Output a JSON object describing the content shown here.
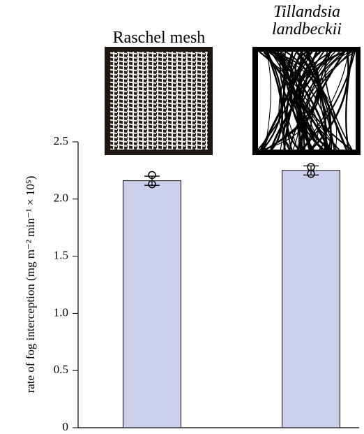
{
  "chart_data": {
    "type": "bar",
    "ylabel": "rate of fog interception (mg m⁻² min⁻¹ × 10⁵)",
    "categories": [
      "Raschel mesh",
      "Tillandsia landbeckii"
    ],
    "values": [
      2.16,
      2.25
    ],
    "errors": [
      0.04,
      0.04
    ],
    "points": [
      [
        2.21,
        2.13
      ],
      [
        2.28,
        2.22
      ]
    ],
    "color": "#cdd0ec",
    "ylim": [
      0,
      2.5
    ],
    "yticks": [
      0,
      0.5,
      {
        "value": 1,
        "label": "1.0"
      },
      1.5,
      {
        "value": 2,
        "label": "2.0"
      },
      2.5
    ]
  }
}
